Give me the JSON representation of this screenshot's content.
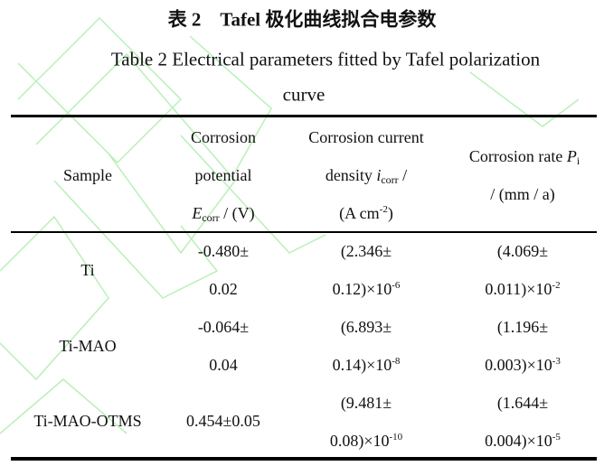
{
  "title_cn": "表 2　Tafel 极化曲线拟合电参数",
  "caption_line1": "Table 2    Electrical parameters fitted by Tafel polarization",
  "caption_line2": "curve",
  "headers": {
    "sample": "Sample",
    "potential": {
      "line1": "Corrosion",
      "line2": "potential",
      "var": "E",
      "sub": "corr",
      "unit": " / (V)"
    },
    "current": {
      "line1": "Corrosion current",
      "line2_pre": "density ",
      "var": "i",
      "sub": "corr",
      "line2_post": " /",
      "unit_base": "(A cm",
      "unit_exp": "-2",
      "unit_end": ")"
    },
    "rate": {
      "line1_pre": "Corrosion rate ",
      "var": "P",
      "sub": "i",
      "line2": "/ (mm / a)"
    }
  },
  "rows": [
    {
      "sample": "Ti",
      "potential": [
        "-0.480±",
        "0.02"
      ],
      "current": {
        "l1": "(2.346±",
        "base": "0.12)×10",
        "exp": "-6"
      },
      "rate": {
        "l1": "(4.069±",
        "base": "0.011)×10",
        "exp": "-2"
      }
    },
    {
      "sample": "Ti-MAO",
      "potential": [
        "-0.064±",
        "0.04"
      ],
      "current": {
        "l1": "(6.893±",
        "base": "0.14)×10",
        "exp": "-8"
      },
      "rate": {
        "l1": "(1.196±",
        "base": "0.003)×10",
        "exp": "-3"
      }
    },
    {
      "sample": "Ti-MAO-OTMS",
      "potential": [
        "0.454±0.05"
      ],
      "current": {
        "l1": "(9.481±",
        "base": "0.08)×10",
        "exp": "-10"
      },
      "rate": {
        "l1": "(1.644±",
        "base": "0.004)×10",
        "exp": "-5"
      }
    }
  ],
  "colors": {
    "watermark": "#c8f5c8",
    "rule": "#000000"
  }
}
